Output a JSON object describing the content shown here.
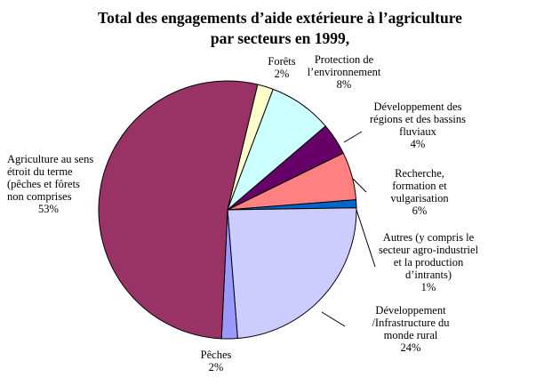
{
  "chart_data": {
    "type": "pie",
    "title": [
      "Total des engagements d’aide extérieure à l’agriculture",
      "par secteurs en 1999,"
    ],
    "slices": [
      {
        "key": "forets",
        "label": [
          "Forêts"
        ],
        "pct": "2%",
        "value": 2,
        "color": "#ffffcc"
      },
      {
        "key": "environnement",
        "label": [
          "Protection de",
          "l’environnement"
        ],
        "pct": "8%",
        "value": 8,
        "color": "#ccffff"
      },
      {
        "key": "bassins",
        "label": [
          "Développement des",
          "régions et des bassins",
          "fluviaux"
        ],
        "pct": "4%",
        "value": 4,
        "color": "#660066"
      },
      {
        "key": "recherche",
        "label": [
          "Recherche,",
          "formation et",
          "vulgarisation"
        ],
        "pct": "6%",
        "value": 6,
        "color": "#ff8080"
      },
      {
        "key": "autres",
        "label": [
          "Autres (y compris le",
          "secteur agro-industriel",
          "et la production",
          "d’intrants)"
        ],
        "pct": "1%",
        "value": 1,
        "color": "#0066cc"
      },
      {
        "key": "infrastructure",
        "label": [
          "Développement",
          "/Infrastructure du",
          "monde rural"
        ],
        "pct": "24%",
        "value": 24,
        "color": "#ccccff"
      },
      {
        "key": "peches",
        "label": [
          "Pêches"
        ],
        "pct": "2%",
        "value": 2,
        "color": "#9999ff"
      },
      {
        "key": "agriculture",
        "label": [
          "Agriculture au sens",
          "étroit du terme",
          "(pêches et fôrets",
          "non comprises"
        ],
        "pct": "53%",
        "value": 53,
        "color": "#993366"
      }
    ],
    "legend": "none"
  }
}
